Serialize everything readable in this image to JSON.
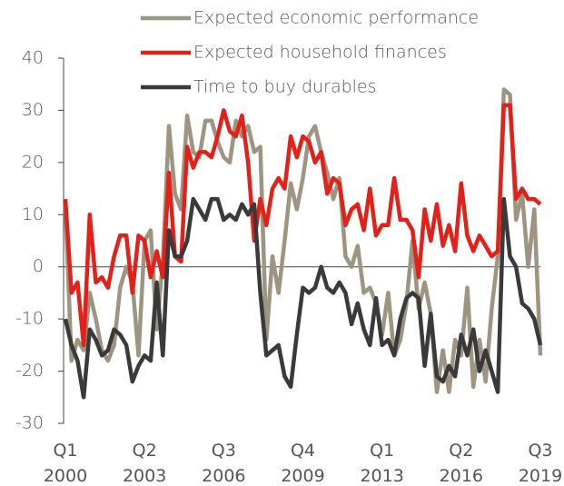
{
  "chart_data": {
    "type": "line",
    "categories": [
      "Q1 2000",
      null,
      null,
      null,
      null,
      null,
      null,
      null,
      null,
      null,
      null,
      null,
      null,
      "Q2 2003",
      null,
      null,
      null,
      null,
      null,
      null,
      null,
      null,
      null,
      null,
      null,
      null,
      "Q3 2006",
      null,
      null,
      null,
      null,
      null,
      null,
      null,
      null,
      null,
      null,
      null,
      null,
      "Q4 2009",
      null,
      null,
      null,
      null,
      null,
      null,
      null,
      null,
      null,
      null,
      null,
      null,
      "Q1 2013",
      null,
      null,
      null,
      null,
      null,
      null,
      null,
      null,
      null,
      null,
      null,
      null,
      "Q2 2016",
      null,
      null,
      null,
      null,
      null,
      null,
      null,
      null,
      null,
      null,
      null,
      null,
      "Q3 2019"
    ],
    "series": [
      {
        "name": "Expected economic performance",
        "color": "#9d9581",
        "values": [
          12,
          -18,
          -14,
          -16,
          -5,
          -10,
          -16,
          -18,
          -15,
          -4,
          0,
          -3,
          -17,
          5,
          7,
          -12,
          1,
          27,
          14,
          11,
          29,
          22,
          21,
          28,
          28,
          24,
          21,
          20,
          28,
          25,
          27,
          22,
          23,
          -14,
          2,
          -5,
          5,
          16,
          11,
          17,
          25,
          27,
          22,
          18,
          13,
          17,
          2,
          0,
          4,
          -5,
          -4,
          -7,
          -13,
          -5,
          -17,
          -14,
          -7,
          5,
          -8,
          -3,
          -9,
          -24,
          -16,
          -24,
          -14,
          -17,
          -4,
          -23,
          -14,
          -22,
          -8,
          2,
          34,
          33,
          9,
          14,
          0,
          11,
          -17
        ]
      },
      {
        "name": "Expected household finances",
        "color": "#e32119",
        "values": [
          13,
          -5,
          -3,
          -15,
          10,
          -3,
          -2,
          -4,
          2,
          6,
          6,
          -5,
          6,
          5,
          -2,
          3,
          -2,
          18,
          2,
          1,
          23,
          19,
          22,
          22,
          21,
          25,
          30,
          26,
          25,
          29,
          20,
          5,
          13,
          8,
          15,
          17,
          15,
          25,
          21,
          25,
          24,
          20,
          22,
          14,
          17,
          16,
          8,
          11,
          12,
          7,
          15,
          6,
          8,
          8,
          17,
          9,
          9,
          7,
          -2,
          11,
          5,
          12,
          4,
          8,
          3,
          16,
          6,
          3,
          6,
          4,
          2,
          3,
          31,
          31,
          13,
          15,
          13,
          13,
          12
        ]
      },
      {
        "name": "Time to buy durables",
        "color": "#3a3a3a",
        "values": [
          -10,
          -15,
          -18,
          -25,
          -12,
          -14,
          -17,
          -16,
          -12,
          -13,
          -15,
          -22,
          -19,
          -17,
          -18,
          -3,
          -17,
          7,
          2,
          2,
          5,
          13,
          11,
          9,
          13,
          13,
          9,
          10,
          9,
          12,
          10,
          12,
          -5,
          -17,
          -16,
          -15,
          -21,
          -23,
          -13,
          -4,
          -5,
          -4,
          0,
          -4,
          -5,
          -3,
          -5,
          -11,
          -7,
          -12,
          -15,
          -6,
          -15,
          -14,
          -17,
          -10,
          -6,
          -5,
          -6,
          -19,
          -9,
          -21,
          -22,
          -19,
          -21,
          -13,
          -17,
          -12,
          -20,
          -16,
          -20,
          -24,
          13,
          2,
          0,
          -7,
          -8,
          -10,
          -15
        ]
      }
    ],
    "ylim": [
      -30,
      40
    ],
    "yticks": [
      -30,
      -20,
      -10,
      0,
      10,
      20,
      30,
      40
    ]
  }
}
